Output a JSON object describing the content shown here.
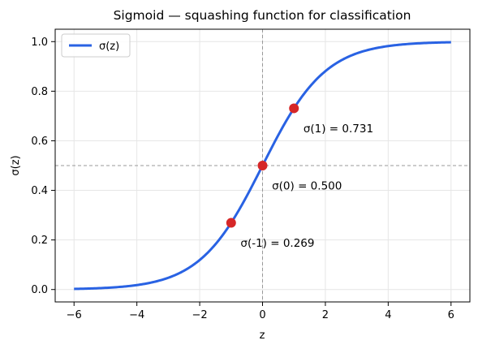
{
  "chart_data": {
    "type": "line",
    "title": "Sigmoid — squashing function for classification",
    "xlabel": "z",
    "ylabel": "σ(z)",
    "xlim": [
      -6.6,
      6.6
    ],
    "ylim": [
      -0.05,
      1.05
    ],
    "xticks": [
      -6,
      -4,
      -2,
      0,
      2,
      4,
      6
    ],
    "xtick_labels": [
      "−6",
      "−4",
      "−2",
      "0",
      "2",
      "4",
      "6"
    ],
    "yticks": [
      0.0,
      0.2,
      0.4,
      0.6,
      0.8,
      1.0
    ],
    "ytick_labels": [
      "0.0",
      "0.2",
      "0.4",
      "0.6",
      "0.8",
      "1.0"
    ],
    "grid": true,
    "legend": {
      "position": "upper-left",
      "entries": [
        "σ(z)"
      ]
    },
    "series": [
      {
        "name": "σ(z)",
        "function": "1/(1+exp(-z))",
        "x_range": [
          -6,
          6
        ],
        "color": "#2962e3"
      }
    ],
    "reference_lines": [
      {
        "orientation": "vertical",
        "value": 0
      },
      {
        "orientation": "horizontal",
        "value": 0.5
      }
    ],
    "highlight_points": [
      {
        "x": -1,
        "y": 0.269,
        "label": "σ(-1) = 0.269"
      },
      {
        "x": 0,
        "y": 0.5,
        "label": "σ(0) = 0.500"
      },
      {
        "x": 1,
        "y": 0.731,
        "label": "σ(1) = 0.731"
      }
    ],
    "colors": {
      "curve": "#2962e3",
      "points": "#d62728",
      "reference": "#999999",
      "grid": "#e6e6e6"
    }
  }
}
